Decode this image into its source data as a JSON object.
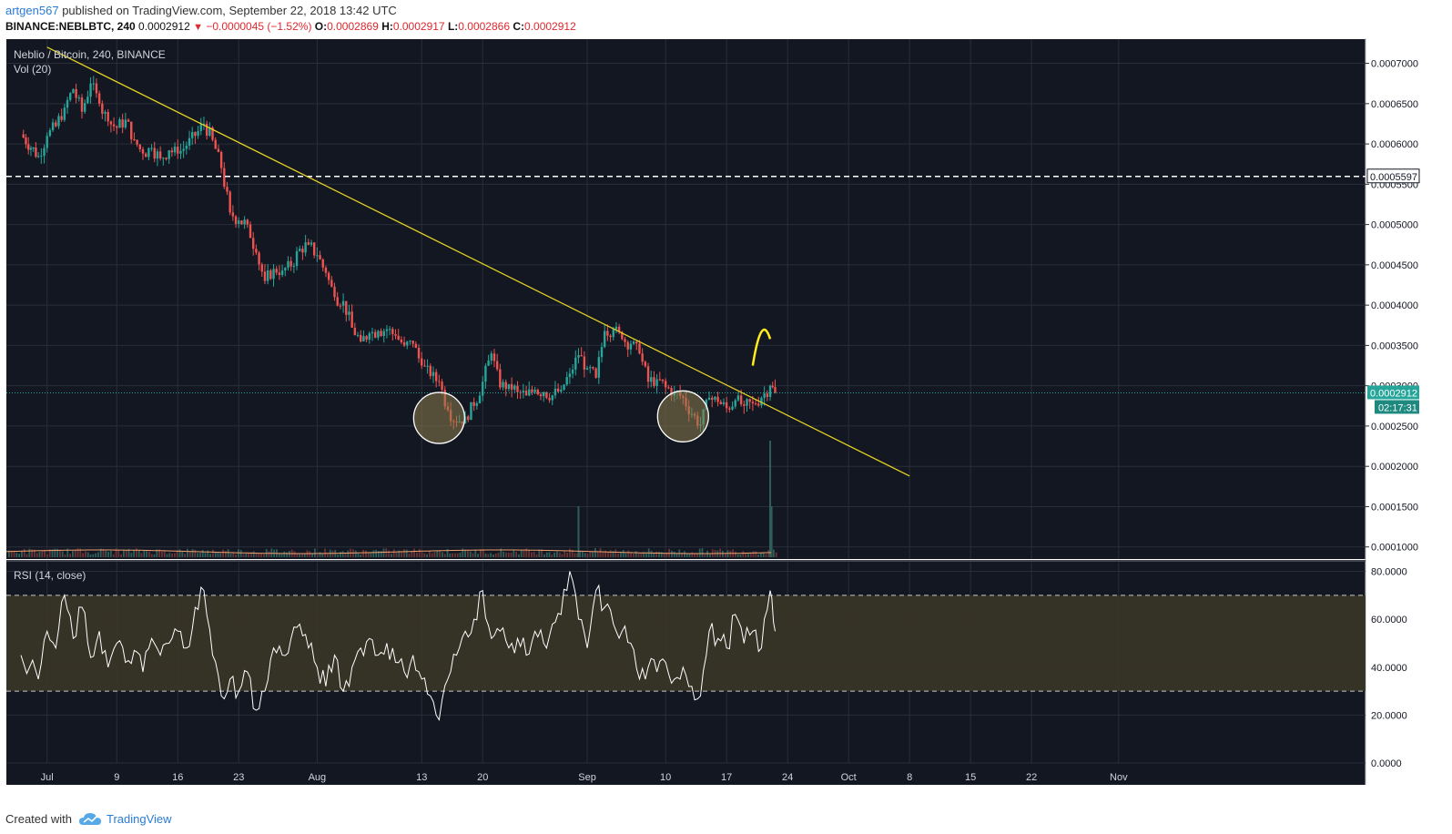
{
  "header": {
    "author": "artgen567",
    "published_text": "published on TradingView.com, September 22, 2018 13:42 UTC",
    "symbol": "BINANCE:NEBLBTC, 240",
    "last": "0.0002912",
    "change": "−0.0000045 (−1.52%)",
    "o_label": "O:",
    "o_val": "0.0002869",
    "h_label": "H:",
    "h_val": "0.0002917",
    "l_label": "L:",
    "l_val": "0.0002866",
    "c_label": "C:",
    "c_val": "0.0002912"
  },
  "legend": {
    "main": "Neblio / Bitcoin, 240, BINANCE",
    "vol": "Vol (20)",
    "rsi": "RSI (14, close)"
  },
  "footer": {
    "created_with": "Created with",
    "brand": "TradingView"
  },
  "colors": {
    "bg": "#131722",
    "up": "#26a69a",
    "down": "#ef5350",
    "trend": "#e7d424",
    "grid": "#2a2e39"
  },
  "chart_data": [
    {
      "type": "candlestick",
      "title": "Neblio / Bitcoin, 240, BINANCE",
      "ylim": [
        8.5e-05,
        0.00073
      ],
      "y_ticks": [
        "0.0001000",
        "0.0001500",
        "0.0002000",
        "0.0002500",
        "0.0003000",
        "0.0003500",
        "0.0004000",
        "0.0004500",
        "0.0005000",
        "0.0005500",
        "0.0006000",
        "0.0006500",
        "0.0007000"
      ],
      "x_ticks": [
        "Jul",
        "9",
        "16",
        "23",
        "Aug",
        "13",
        "20",
        "Sep",
        "10",
        "17",
        "24",
        "Oct",
        "8",
        "15",
        "22",
        "Nov"
      ],
      "close_path": [
        [
          "2018-06-28",
          0.000612
        ],
        [
          "2018-06-30",
          0.000585
        ],
        [
          "2018-07-01",
          0.00061
        ],
        [
          "2018-07-02",
          0.000622
        ],
        [
          "2018-07-03",
          0.000645
        ],
        [
          "2018-07-04",
          0.000668
        ],
        [
          "2018-07-05",
          0.00064
        ],
        [
          "2018-07-06",
          0.000675
        ],
        [
          "2018-07-07",
          0.00065
        ],
        [
          "2018-07-08",
          0.000628
        ],
        [
          "2018-07-09",
          0.00062
        ],
        [
          "2018-07-10",
          0.00063
        ],
        [
          "2018-07-11",
          0.000605
        ],
        [
          "2018-07-12",
          0.000588
        ],
        [
          "2018-07-13",
          0.000595
        ],
        [
          "2018-07-14",
          0.000582
        ],
        [
          "2018-07-15",
          0.000592
        ],
        [
          "2018-07-16",
          0.000588
        ],
        [
          "2018-07-17",
          0.000598
        ],
        [
          "2018-07-18",
          0.00061
        ],
        [
          "2018-07-19",
          0.000625
        ],
        [
          "2018-07-20",
          0.000605
        ],
        [
          "2018-07-21",
          0.00057
        ],
        [
          "2018-07-22",
          0.000515
        ],
        [
          "2018-07-23",
          0.000505
        ],
        [
          "2018-07-24",
          0.0005
        ],
        [
          "2018-07-25",
          0.000465
        ],
        [
          "2018-07-26",
          0.00043
        ],
        [
          "2018-07-27",
          0.000445
        ],
        [
          "2018-07-28",
          0.000443
        ],
        [
          "2018-07-29",
          0.000448
        ],
        [
          "2018-07-30",
          0.00047
        ],
        [
          "2018-07-31",
          0.000475
        ],
        [
          "2018-08-01",
          0.000462
        ],
        [
          "2018-08-02",
          0.00044
        ],
        [
          "2018-08-03",
          0.00041
        ],
        [
          "2018-08-04",
          0.000405
        ],
        [
          "2018-08-05",
          0.000372
        ],
        [
          "2018-08-06",
          0.000355
        ],
        [
          "2018-08-07",
          0.000365
        ],
        [
          "2018-08-08",
          0.000368
        ],
        [
          "2018-08-09",
          0.00037
        ],
        [
          "2018-08-10",
          0.000362
        ],
        [
          "2018-08-11",
          0.00035
        ],
        [
          "2018-08-12",
          0.000352
        ],
        [
          "2018-08-13",
          0.000325
        ],
        [
          "2018-08-14",
          0.000312
        ],
        [
          "2018-08-15",
          0.000305
        ],
        [
          "2018-08-16",
          0.00027
        ],
        [
          "2018-08-17",
          0.000255
        ],
        [
          "2018-08-18",
          0.000262
        ],
        [
          "2018-08-19",
          0.000275
        ],
        [
          "2018-08-20",
          0.000305
        ],
        [
          "2018-08-21",
          0.00034
        ],
        [
          "2018-08-22",
          0.000298
        ],
        [
          "2018-08-23",
          0.000302
        ],
        [
          "2018-08-24",
          0.000292
        ],
        [
          "2018-08-25",
          0.000288
        ],
        [
          "2018-08-26",
          0.000295
        ],
        [
          "2018-08-27",
          0.000292
        ],
        [
          "2018-08-28",
          0.000288
        ],
        [
          "2018-08-29",
          0.000295
        ],
        [
          "2018-08-30",
          0.000315
        ],
        [
          "2018-08-31",
          0.000338
        ],
        [
          "2018-09-01",
          0.000322
        ],
        [
          "2018-09-02",
          0.00031
        ],
        [
          "2018-09-03",
          0.000368
        ],
        [
          "2018-09-04",
          0.00037
        ],
        [
          "2018-09-05",
          0.000358
        ],
        [
          "2018-09-06",
          0.000352
        ],
        [
          "2018-09-07",
          0.00034
        ],
        [
          "2018-09-08",
          0.000305
        ],
        [
          "2018-09-09",
          0.000308
        ],
        [
          "2018-09-10",
          0.000298
        ],
        [
          "2018-09-11",
          0.000292
        ],
        [
          "2018-09-12",
          0.000285
        ],
        [
          "2018-09-13",
          0.000265
        ],
        [
          "2018-09-14",
          0.000252
        ],
        [
          "2018-09-15",
          0.000285
        ],
        [
          "2018-09-16",
          0.00028
        ],
        [
          "2018-09-17",
          0.000272
        ],
        [
          "2018-09-18",
          0.000282
        ],
        [
          "2018-09-19",
          0.000275
        ],
        [
          "2018-09-20",
          0.000278
        ],
        [
          "2018-09-21",
          0.000285
        ],
        [
          "2018-09-22",
          0.0003
        ],
        [
          "2018-09-22T13:42",
          0.0002912
        ]
      ],
      "last_price": 0.0002912,
      "last_price_label": "0.0002912",
      "countdown_label": "02:17:31",
      "horizontal_line": {
        "value": 0.0005597,
        "label": "0.0005597"
      },
      "trendline": [
        [
          "2018-07-01",
          0.00072
        ],
        [
          "2018-10-08",
          0.000188
        ]
      ],
      "circles": [
        {
          "date": "2018-08-15",
          "value": 0.00026
        },
        {
          "date": "2018-09-12",
          "value": 0.000262
        }
      ],
      "arrow_curve": [
        [
          "2018-09-20",
          0.000325
        ],
        [
          "2018-09-21",
          0.000372
        ],
        [
          "2018-09-22",
          0.000358
        ]
      ]
    },
    {
      "type": "bar",
      "title": "Vol (20)",
      "spikes": [
        [
          "2018-08-31",
          0.35
        ],
        [
          "2018-09-22",
          0.8
        ],
        [
          "2018-09-22T04:00",
          0.35
        ]
      ]
    },
    {
      "type": "line",
      "title": "RSI (14, close)",
      "ylim": [
        0,
        84
      ],
      "y_ticks": [
        "0.0000",
        "20.0000",
        "40.0000",
        "60.0000",
        "80.0000"
      ],
      "band": [
        30,
        70
      ],
      "values": [
        [
          "2018-06-28",
          45
        ],
        [
          "2018-06-30",
          35
        ],
        [
          "2018-07-01",
          55
        ],
        [
          "2018-07-02",
          48
        ],
        [
          "2018-07-03",
          70
        ],
        [
          "2018-07-04",
          52
        ],
        [
          "2018-07-05",
          65
        ],
        [
          "2018-07-06",
          44
        ],
        [
          "2018-07-07",
          55
        ],
        [
          "2018-07-08",
          40
        ],
        [
          "2018-07-09",
          50
        ],
        [
          "2018-07-10",
          42
        ],
        [
          "2018-07-11",
          47
        ],
        [
          "2018-07-12",
          38
        ],
        [
          "2018-07-13",
          52
        ],
        [
          "2018-07-14",
          45
        ],
        [
          "2018-07-15",
          50
        ],
        [
          "2018-07-16",
          55
        ],
        [
          "2018-07-17",
          48
        ],
        [
          "2018-07-18",
          65
        ],
        [
          "2018-07-19",
          72
        ],
        [
          "2018-07-20",
          45
        ],
        [
          "2018-07-21",
          28
        ],
        [
          "2018-07-22",
          35
        ],
        [
          "2018-07-23",
          30
        ],
        [
          "2018-07-24",
          38
        ],
        [
          "2018-07-25",
          22
        ],
        [
          "2018-07-26",
          30
        ],
        [
          "2018-07-27",
          48
        ],
        [
          "2018-07-28",
          45
        ],
        [
          "2018-07-29",
          52
        ],
        [
          "2018-07-30",
          58
        ],
        [
          "2018-07-31",
          48
        ],
        [
          "2018-08-01",
          40
        ],
        [
          "2018-08-02",
          32
        ],
        [
          "2018-08-03",
          45
        ],
        [
          "2018-08-04",
          30
        ],
        [
          "2018-08-05",
          40
        ],
        [
          "2018-08-06",
          48
        ],
        [
          "2018-08-07",
          52
        ],
        [
          "2018-08-08",
          45
        ],
        [
          "2018-08-09",
          50
        ],
        [
          "2018-08-10",
          42
        ],
        [
          "2018-08-11",
          38
        ],
        [
          "2018-08-12",
          45
        ],
        [
          "2018-08-13",
          35
        ],
        [
          "2018-08-14",
          28
        ],
        [
          "2018-08-15",
          18
        ],
        [
          "2018-08-16",
          35
        ],
        [
          "2018-08-17",
          45
        ],
        [
          "2018-08-18",
          55
        ],
        [
          "2018-08-19",
          60
        ],
        [
          "2018-08-20",
          72
        ],
        [
          "2018-08-21",
          52
        ],
        [
          "2018-08-22",
          55
        ],
        [
          "2018-08-23",
          48
        ],
        [
          "2018-08-24",
          52
        ],
        [
          "2018-08-25",
          45
        ],
        [
          "2018-08-26",
          55
        ],
        [
          "2018-08-27",
          50
        ],
        [
          "2018-08-28",
          58
        ],
        [
          "2018-08-29",
          62
        ],
        [
          "2018-08-30",
          80
        ],
        [
          "2018-08-31",
          60
        ],
        [
          "2018-09-01",
          48
        ],
        [
          "2018-09-02",
          72
        ],
        [
          "2018-09-03",
          65
        ],
        [
          "2018-09-04",
          58
        ],
        [
          "2018-09-05",
          55
        ],
        [
          "2018-09-06",
          50
        ],
        [
          "2018-09-07",
          35
        ],
        [
          "2018-09-08",
          40
        ],
        [
          "2018-09-09",
          38
        ],
        [
          "2018-09-10",
          42
        ],
        [
          "2018-09-11",
          35
        ],
        [
          "2018-09-12",
          40
        ],
        [
          "2018-09-13",
          32
        ],
        [
          "2018-09-14",
          28
        ],
        [
          "2018-09-15",
          55
        ],
        [
          "2018-09-16",
          52
        ],
        [
          "2018-09-17",
          48
        ],
        [
          "2018-09-18",
          62
        ],
        [
          "2018-09-19",
          50
        ],
        [
          "2018-09-20",
          55
        ],
        [
          "2018-09-21",
          48
        ],
        [
          "2018-09-22",
          72
        ],
        [
          "2018-09-22T13:42",
          55
        ]
      ]
    }
  ]
}
